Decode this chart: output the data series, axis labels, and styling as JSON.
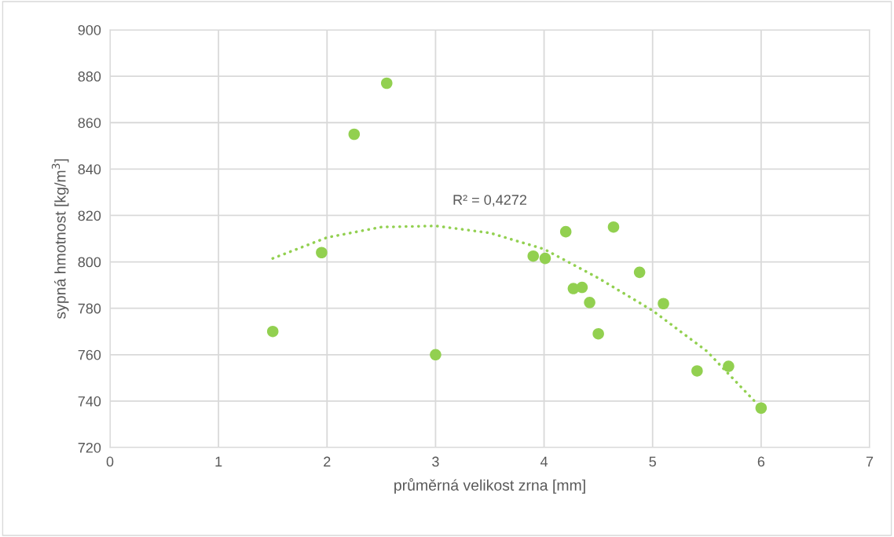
{
  "chart_data": {
    "type": "scatter",
    "xlabel": "průměrná velikost zrna [mm]",
    "ylabel": "sypná hmotnost [kg/m$^{3}$]",
    "xlim": [
      0,
      7
    ],
    "xticks": [
      0,
      1,
      2,
      3,
      4,
      5,
      6,
      7
    ],
    "ylim": [
      720,
      900
    ],
    "yticks": [
      720,
      740,
      760,
      780,
      800,
      820,
      840,
      860,
      880,
      900
    ],
    "grid": true,
    "marker": "circle",
    "series": [
      {
        "color": "#92d050",
        "x": [
          1.5,
          1.95,
          2.25,
          2.55,
          3.0,
          3.9,
          4.01,
          4.2,
          4.27,
          4.35,
          4.42,
          4.5,
          4.64,
          4.88,
          5.1,
          5.41,
          5.7,
          6.0
        ],
        "values": [
          770,
          804,
          855,
          877,
          760,
          802.5,
          801.5,
          813,
          788.5,
          789,
          782.5,
          769,
          815,
          795.5,
          782,
          753,
          755,
          737
        ]
      },
      {
        "type": "line",
        "color": "#92d050",
        "line_style": "dotted",
        "marker": "none",
        "x": [
          1.5,
          2,
          2.5,
          3,
          3.5,
          4,
          4.5,
          5,
          5.5,
          6
        ],
        "values": [
          801.5,
          810.5,
          815,
          815.5,
          812.5,
          805.5,
          793,
          779,
          761.5,
          737
        ]
      }
    ],
    "annotations": [
      "R² = 0,4272"
    ]
  }
}
